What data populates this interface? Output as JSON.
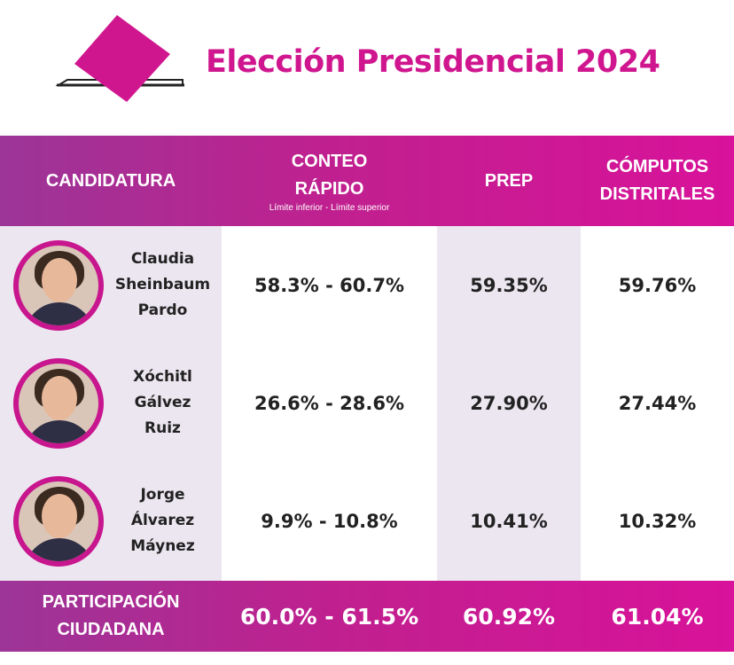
{
  "title": "Elección Presidencial 2024",
  "colors": {
    "accent": "#d0168f",
    "gradient_start": "#9c3597",
    "gradient_end": "#d8129a",
    "shaded_column": "#ece6f0"
  },
  "header": {
    "candidatura": "CANDIDATURA",
    "conteo_line1": "CONTEO",
    "conteo_line2": "RÁPIDO",
    "conteo_sub": "Límite inferior - Límite superior",
    "prep": "PREP",
    "computos_line1": "CÓMPUTOS",
    "computos_line2": "DISTRITALES"
  },
  "candidates": [
    {
      "name": [
        "Claudia",
        "Sheinbaum",
        "Pardo"
      ],
      "conteo": "58.3% - 60.7%",
      "prep": "59.35%",
      "computos": "59.76%"
    },
    {
      "name": [
        "Xóchitl",
        "Gálvez",
        "Ruiz"
      ],
      "conteo": "26.6% - 28.6%",
      "prep": "27.90%",
      "computos": "27.44%"
    },
    {
      "name": [
        "Jorge",
        "Álvarez",
        "Máynez"
      ],
      "conteo": "9.9% - 10.8%",
      "prep": "10.41%",
      "computos": "10.32%"
    }
  ],
  "footer": {
    "label_line1": "PARTICIPACIÓN",
    "label_line2": "CIUDADANA",
    "conteo": "60.0% - 61.5%",
    "prep": "60.92%",
    "computos": "61.04%"
  }
}
